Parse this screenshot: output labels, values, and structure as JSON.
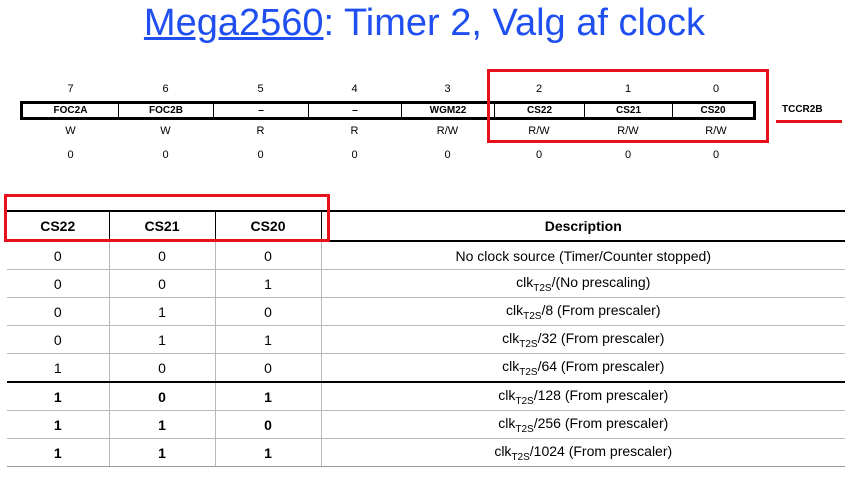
{
  "title": {
    "link_text": "Mega2560",
    "rest_text": ": Timer 2, Valg af clock"
  },
  "register": {
    "name": "TCCR2B",
    "bits": [
      "7",
      "6",
      "5",
      "4",
      "3",
      "2",
      "1",
      "0"
    ],
    "names": [
      "FOC2A",
      "FOC2B",
      "–",
      "–",
      "WGM22",
      "CS22",
      "CS21",
      "CS20"
    ],
    "rw": [
      "W",
      "W",
      "R",
      "R",
      "R/W",
      "R/W",
      "R/W",
      "R/W"
    ],
    "initial": [
      "0",
      "0",
      "0",
      "0",
      "0",
      "0",
      "0",
      "0"
    ]
  },
  "table": {
    "headers": [
      "CS22",
      "CS21",
      "CS20",
      "Description"
    ],
    "rows": [
      {
        "cs22": "0",
        "cs21": "0",
        "cs20": "0",
        "desc_main": "No clock source (Timer/Counter stopped)",
        "clk": "",
        "sub": "",
        "desc_tail": ""
      },
      {
        "cs22": "0",
        "cs21": "0",
        "cs20": "1",
        "desc_main": "",
        "clk": "clk",
        "sub": "T2S",
        "desc_tail": "/(No prescaling)"
      },
      {
        "cs22": "0",
        "cs21": "1",
        "cs20": "0",
        "desc_main": "",
        "clk": "clk",
        "sub": "T2S",
        "desc_tail": "/8 (From prescaler)"
      },
      {
        "cs22": "0",
        "cs21": "1",
        "cs20": "1",
        "desc_main": "",
        "clk": "clk",
        "sub": "T2S",
        "desc_tail": "/32 (From prescaler)"
      },
      {
        "cs22": "1",
        "cs21": "0",
        "cs20": "0",
        "desc_main": "",
        "clk": "clk",
        "sub": "T2S",
        "desc_tail": "/64 (From prescaler)"
      },
      {
        "cs22": "1",
        "cs21": "0",
        "cs20": "1",
        "desc_main": "",
        "clk": "clk",
        "sub": "T2S",
        "desc_tail": "/128 (From prescaler)"
      },
      {
        "cs22": "1",
        "cs21": "1",
        "cs20": "0",
        "desc_main": "",
        "clk": "clk",
        "sub": "T2S",
        "desc_tail": "/256 (From prescaler)"
      },
      {
        "cs22": "1",
        "cs21": "1",
        "cs20": "1",
        "desc_main": "",
        "clk": "clk",
        "sub": "T2S",
        "desc_tail": "/1024 (From prescaler)"
      }
    ]
  },
  "colors": {
    "title": "#1f4ff0",
    "highlight": "#e8101a"
  }
}
